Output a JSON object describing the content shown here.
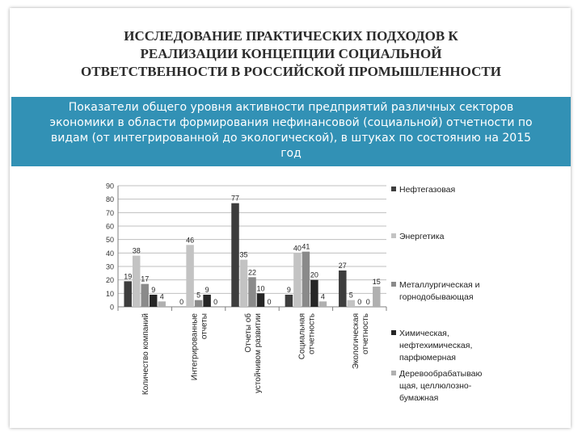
{
  "slide": {
    "title_lines": [
      "ИССЛЕДОВАНИЕ ПРАКТИЧЕСКИХ ПОДХОДОВ К",
      "РЕАЛИЗАЦИИ КОНЦЕПЦИИ СОЦИАЛЬНОЙ",
      "ОТВЕТСТВЕННОСТИ В РОССИЙСКОЙ ПРОМЫШЛЕННОСТИ"
    ],
    "subtitle_lines": [
      "Показатели общего уровня активности предприятий различных секторов",
      "экономики в области формирования нефинансовой (социальной) отчетности по",
      "видам (от интегрированной до экологической), в штуках по состоянию на 2015",
      "год"
    ],
    "banner_color": "#3291b5"
  },
  "chart_data": {
    "type": "bar",
    "ylim": [
      0,
      90
    ],
    "yticks": [
      0,
      10,
      20,
      30,
      40,
      50,
      60,
      70,
      80,
      90
    ],
    "grid": true,
    "legend_position": "right",
    "categories": [
      [
        "Количество компаний"
      ],
      [
        "Интегрированные",
        "отчеты"
      ],
      [
        "Отчеты об",
        "устойчивом развитии"
      ],
      [
        "Социальная",
        "отчетность"
      ],
      [
        "Экологическая",
        "отчетность"
      ]
    ],
    "series": [
      {
        "name": [
          "Нефтегазовая"
        ],
        "color": "#3d3d3d",
        "values": [
          19,
          0,
          77,
          9,
          27
        ]
      },
      {
        "name": [
          "Энергетика"
        ],
        "color": "#c3c3c3",
        "values": [
          38,
          46,
          35,
          40,
          5
        ]
      },
      {
        "name": [
          "Металлургическая и",
          "горнодобывающая"
        ],
        "color": "#8a8a8a",
        "values": [
          17,
          5,
          22,
          41,
          0
        ]
      },
      {
        "name": [
          "Химическая,",
          "нефтехимическая,",
          "парфюмерная"
        ],
        "color": "#262626",
        "values": [
          9,
          9,
          10,
          20,
          0
        ]
      },
      {
        "name": [
          "Деревообрабатываю",
          "щая, целлюлозно-",
          "бумажная"
        ],
        "color": "#b0b0b0",
        "values": [
          4,
          0,
          0,
          4,
          15
        ]
      }
    ]
  }
}
